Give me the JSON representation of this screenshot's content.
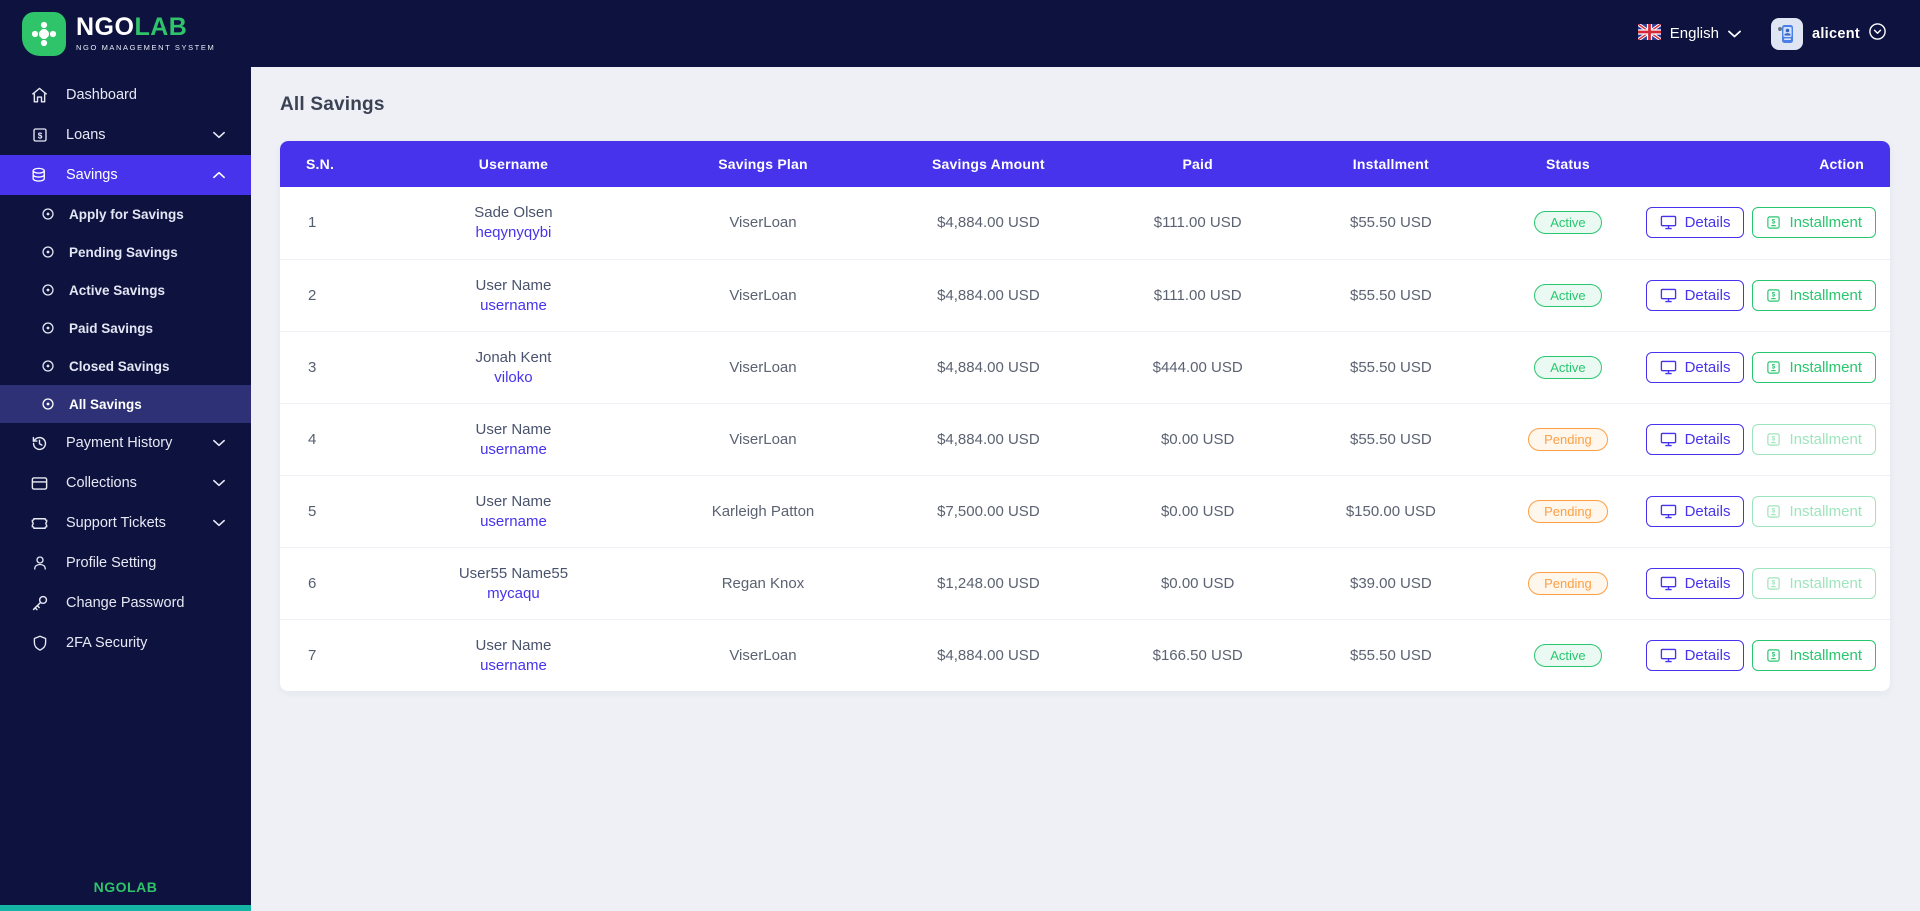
{
  "brand": {
    "name_primary": "NGO",
    "name_secondary": "LAB",
    "subtitle": "NGO MANAGEMENT SYSTEM",
    "footer": "NGOLAB"
  },
  "topbar": {
    "language": "English",
    "username": "alicent"
  },
  "sidebar": {
    "items": [
      {
        "label": "Dashboard",
        "icon": "home-icon",
        "type": "item"
      },
      {
        "label": "Loans",
        "icon": "loan-icon",
        "type": "item",
        "chevron": "down"
      },
      {
        "label": "Savings",
        "icon": "savings-icon",
        "type": "item",
        "chevron": "up",
        "state": "parent-active"
      },
      {
        "label": "Apply for Savings",
        "icon": "dot-circle-icon",
        "type": "sub"
      },
      {
        "label": "Pending Savings",
        "icon": "dot-circle-icon",
        "type": "sub"
      },
      {
        "label": "Active Savings",
        "icon": "dot-circle-icon",
        "type": "sub"
      },
      {
        "label": "Paid Savings",
        "icon": "dot-circle-icon",
        "type": "sub"
      },
      {
        "label": "Closed Savings",
        "icon": "dot-circle-icon",
        "type": "sub"
      },
      {
        "label": "All Savings",
        "icon": "dot-circle-icon",
        "type": "sub",
        "state": "active"
      },
      {
        "label": "Payment History",
        "icon": "history-icon",
        "type": "item",
        "chevron": "down"
      },
      {
        "label": "Collections",
        "icon": "card-icon",
        "type": "item",
        "chevron": "down"
      },
      {
        "label": "Support Tickets",
        "icon": "ticket-icon",
        "type": "item",
        "chevron": "down"
      },
      {
        "label": "Profile Setting",
        "icon": "user-icon",
        "type": "item"
      },
      {
        "label": "Change Password",
        "icon": "key-icon",
        "type": "item"
      },
      {
        "label": "2FA Security",
        "icon": "shield-icon",
        "type": "item"
      }
    ]
  },
  "page": {
    "title": "All Savings"
  },
  "table": {
    "headers": [
      "S.N.",
      "Username",
      "Savings Plan",
      "Savings Amount",
      "Paid",
      "Installment",
      "Status",
      "Action"
    ],
    "actions": {
      "details_label": "Details",
      "installment_label": "Installment"
    },
    "rows": [
      {
        "sn": "1",
        "name": "Sade Olsen",
        "username": "heqynyqybi",
        "plan": "ViserLoan",
        "amount": "$4,884.00 USD",
        "paid": "$111.00 USD",
        "installment": "$55.50 USD",
        "status": "Active",
        "installment_enabled": true
      },
      {
        "sn": "2",
        "name": "User Name",
        "username": "username",
        "plan": "ViserLoan",
        "amount": "$4,884.00 USD",
        "paid": "$111.00 USD",
        "installment": "$55.50 USD",
        "status": "Active",
        "installment_enabled": true
      },
      {
        "sn": "3",
        "name": "Jonah Kent",
        "username": "viloko",
        "plan": "ViserLoan",
        "amount": "$4,884.00 USD",
        "paid": "$444.00 USD",
        "installment": "$55.50 USD",
        "status": "Active",
        "installment_enabled": true
      },
      {
        "sn": "4",
        "name": "User Name",
        "username": "username",
        "plan": "ViserLoan",
        "amount": "$4,884.00 USD",
        "paid": "$0.00 USD",
        "installment": "$55.50 USD",
        "status": "Pending",
        "installment_enabled": false
      },
      {
        "sn": "5",
        "name": "User Name",
        "username": "username",
        "plan": "Karleigh Patton",
        "amount": "$7,500.00 USD",
        "paid": "$0.00 USD",
        "installment": "$150.00 USD",
        "status": "Pending",
        "installment_enabled": false
      },
      {
        "sn": "6",
        "name": "User55 Name55",
        "username": "mycaqu",
        "plan": "Regan Knox",
        "amount": "$1,248.00 USD",
        "paid": "$0.00 USD",
        "installment": "$39.00 USD",
        "status": "Pending",
        "installment_enabled": false
      },
      {
        "sn": "7",
        "name": "User Name",
        "username": "username",
        "plan": "ViserLoan",
        "amount": "$4,884.00 USD",
        "paid": "$166.50 USD",
        "installment": "$55.50 USD",
        "status": "Active",
        "installment_enabled": true
      }
    ]
  },
  "colors": {
    "accent": "#4733eb",
    "navy": "#0d123f",
    "green": "#28c76f",
    "orange": "#ff9f43",
    "brand_green": "#2fc46a",
    "background": "#eef0f6"
  }
}
